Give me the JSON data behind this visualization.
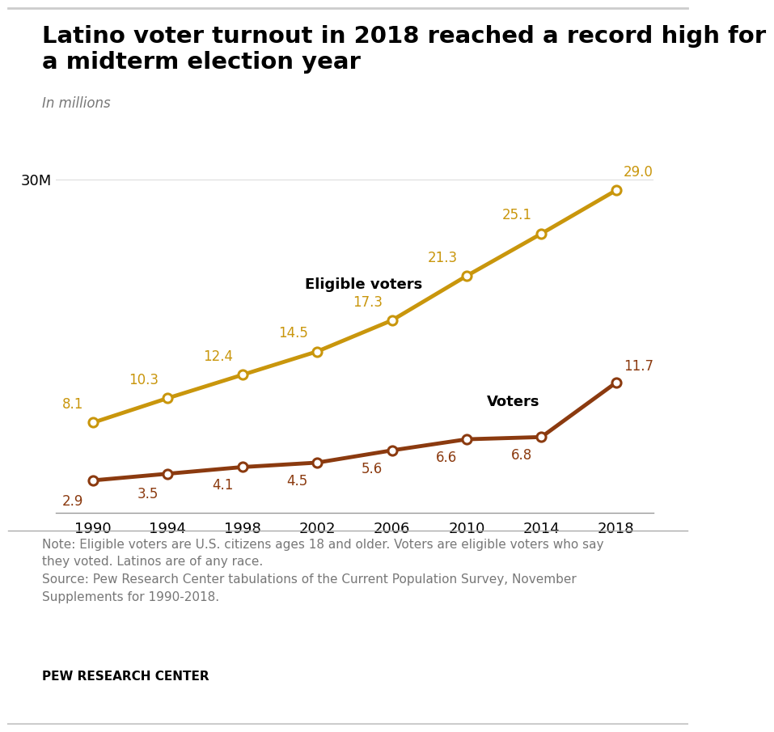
{
  "title_line1": "Latino voter turnout in 2018 reached a record high for",
  "title_line2": "a midterm election year",
  "subtitle": "In millions",
  "years": [
    1990,
    1994,
    1998,
    2002,
    2006,
    2010,
    2014,
    2018
  ],
  "eligible_voters": [
    8.1,
    10.3,
    12.4,
    14.5,
    17.3,
    21.3,
    25.1,
    29.0
  ],
  "voters": [
    2.9,
    3.5,
    4.1,
    4.5,
    5.6,
    6.6,
    6.8,
    11.7
  ],
  "eligible_color": "#C9960C",
  "voters_color": "#8B3A0F",
  "marker_face": "#FFFFFF",
  "ylim": [
    0,
    33
  ],
  "ytick_label": "30M",
  "ytick_value": 30,
  "eligible_label": "Eligible voters",
  "voters_label": "Voters",
  "note_text": "Note: Eligible voters are U.S. citizens ages 18 and older. Voters are eligible voters who say\nthey voted. Latinos are of any race.\nSource: Pew Research Center tabulations of the Current Population Survey, November\nSupplements for 1990-2018.",
  "pew_label": "PEW RESEARCH CENTER",
  "background_color": "#FFFFFF",
  "title_fontsize": 21,
  "subtitle_fontsize": 12,
  "note_fontsize": 11,
  "pew_fontsize": 11,
  "label_fontsize": 13,
  "data_label_fontsize": 12,
  "tick_fontsize": 13,
  "line_width": 3.5,
  "marker_size": 8
}
